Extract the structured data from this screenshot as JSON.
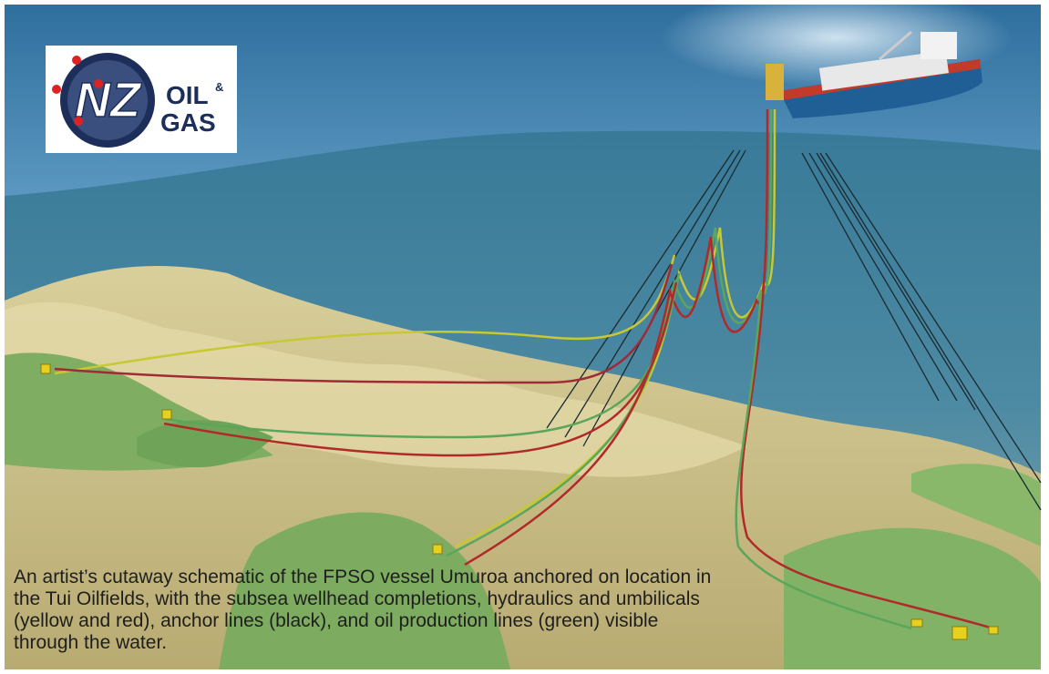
{
  "logo": {
    "mark": "NZ",
    "word1": "OIL",
    "amp": "&",
    "word2": "GAS"
  },
  "caption": {
    "lines": [
      "An artist’s cutaway schematic of the FPSO vessel Umuroa anchored on location in",
      "the Tui Oilfields, with the subsea wellhead completions, hydraulics and umbilicals",
      "(yellow and red), anchor lines (black), and oil production lines (green) visible",
      "through the water."
    ]
  }
}
